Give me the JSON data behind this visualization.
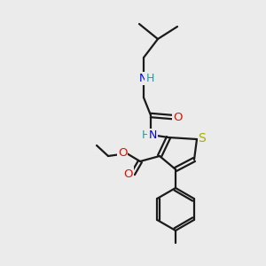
{
  "background_color": "#ebebeb",
  "bond_color": "#1a1a1a",
  "atom_colors": {
    "N": "#0000ee",
    "O": "#dd1100",
    "S": "#aaaa00",
    "H": "#00aaaa"
  },
  "figsize": [
    3.0,
    3.0
  ],
  "dpi": 100
}
